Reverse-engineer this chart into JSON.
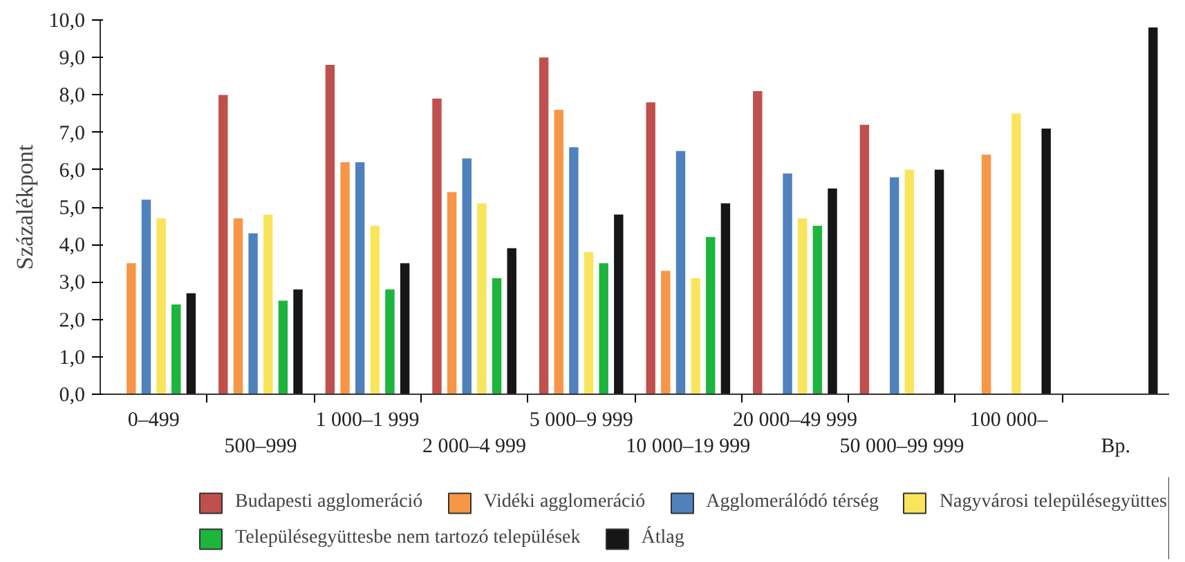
{
  "chart_data": {
    "type": "bar",
    "ylabel": "Százalékpont",
    "categories": [
      "0–499",
      "500–999",
      "1 000–1 999",
      "2 000–4 999",
      "5 000–9 999",
      "10 000–19 999",
      "20 000–49 999",
      "50 000–99 999",
      "100 000–",
      "Bp."
    ],
    "series": [
      {
        "name": "Budapesti agglomeráció",
        "color": "#c0504d",
        "values": [
          null,
          8.0,
          8.8,
          7.9,
          9.0,
          7.8,
          8.1,
          7.2,
          null,
          null
        ]
      },
      {
        "name": "Vidéki agglomeráció",
        "color": "#f79646",
        "values": [
          3.5,
          4.7,
          6.2,
          5.4,
          7.6,
          3.3,
          null,
          null,
          6.4,
          null
        ]
      },
      {
        "name": "Agglomerálódó térség",
        "color": "#4f81bd",
        "values": [
          5.2,
          4.3,
          6.2,
          6.3,
          6.6,
          6.5,
          5.9,
          5.8,
          null,
          null
        ]
      },
      {
        "name": "Nagyvárosi településegyüttes",
        "color": "#f9e55c",
        "values": [
          4.7,
          4.8,
          4.5,
          5.1,
          3.8,
          3.1,
          4.7,
          6.0,
          7.5,
          null
        ]
      },
      {
        "name": "Településegyüttesbe nem tartozó települések",
        "color": "#1db53c",
        "values": [
          2.4,
          2.5,
          2.8,
          3.1,
          3.5,
          4.2,
          4.5,
          null,
          null,
          null
        ]
      },
      {
        "name": "Átlag",
        "color": "#161616",
        "values": [
          2.7,
          2.8,
          3.5,
          3.9,
          4.8,
          5.1,
          5.5,
          6.0,
          7.1,
          9.8
        ]
      }
    ],
    "ylim": [
      0,
      10
    ],
    "yticks": [
      {
        "value": 0,
        "label": "0,0"
      },
      {
        "value": 1,
        "label": "1,0"
      },
      {
        "value": 2,
        "label": "2,0"
      },
      {
        "value": 3,
        "label": "3,0"
      },
      {
        "value": 4,
        "label": "4,0"
      },
      {
        "value": 5,
        "label": "5,0"
      },
      {
        "value": 6,
        "label": "6,0"
      },
      {
        "value": 7,
        "label": "7,0"
      },
      {
        "value": 8,
        "label": "8,0"
      },
      {
        "value": 9,
        "label": "9,0"
      },
      {
        "value": 10,
        "label": "10,0"
      }
    ],
    "grid": false,
    "legend": "bottom"
  }
}
